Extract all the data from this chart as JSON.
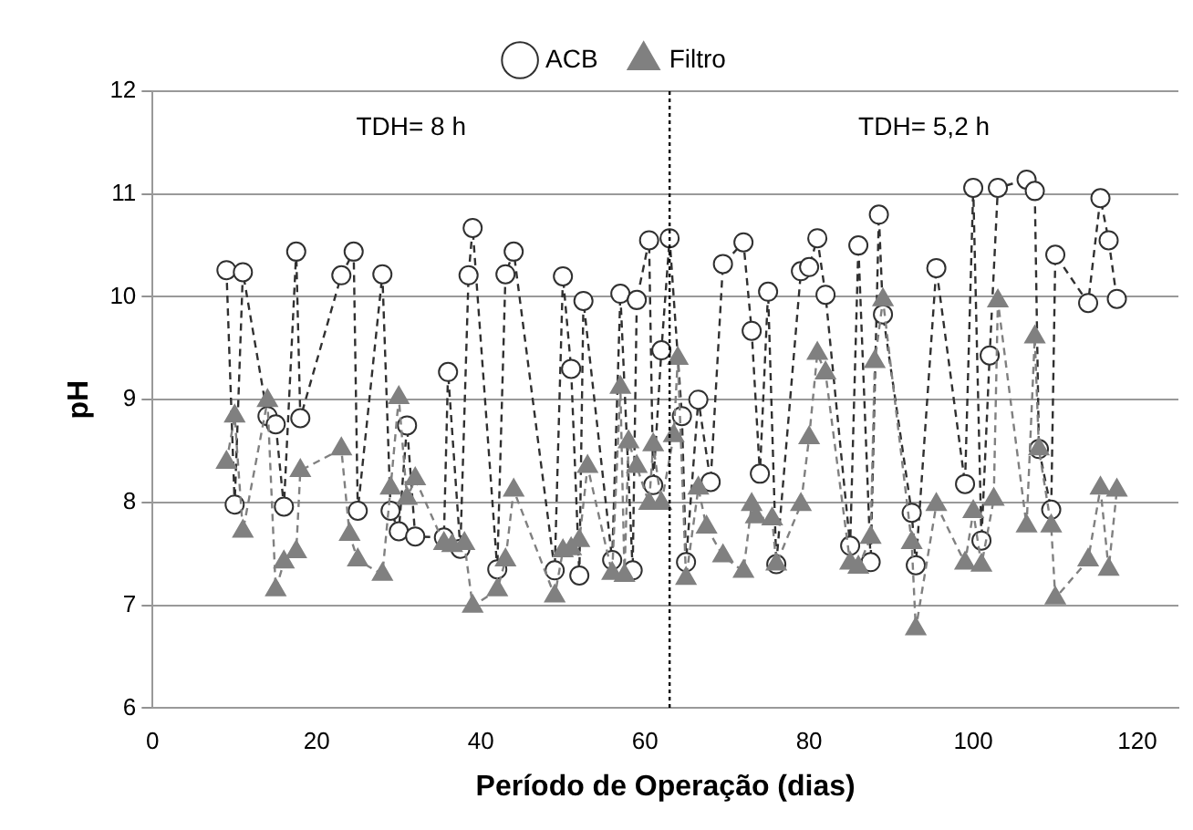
{
  "chart_data": {
    "type": "line",
    "xlabel": "Período de Operação (dias)",
    "ylabel": "pH",
    "xlim": [
      0,
      125
    ],
    "xticks": [
      0,
      20,
      40,
      60,
      80,
      100,
      120
    ],
    "ylim": [
      6,
      12
    ],
    "yticks": [
      6,
      7,
      8,
      9,
      10,
      11,
      12
    ],
    "grid": "y",
    "legend": "top",
    "line_style": "dashed",
    "ref_lines": [
      {
        "axis": "x",
        "value": 63,
        "color": "#000000",
        "line_style": "dotted"
      }
    ],
    "annotations": [
      "TDH= 8 h",
      "TDH= 5,2 h"
    ],
    "series": [
      {
        "name": "ACB",
        "color": "#303030",
        "marker": "circle",
        "x": [
          9,
          10,
          11,
          14,
          15,
          16,
          17.5,
          18,
          23,
          24.5,
          25,
          28,
          29,
          30,
          31,
          32,
          35.5,
          36,
          37.5,
          38.5,
          39,
          42,
          43,
          44,
          49,
          50,
          51,
          52,
          52.5,
          56,
          57,
          58.5,
          59,
          60.5,
          61,
          62,
          63,
          64.5,
          65,
          66.5,
          68,
          69.5,
          72,
          73,
          74,
          75,
          76,
          79,
          80,
          81,
          82,
          85,
          86,
          87.5,
          88.5,
          89,
          92.5,
          93,
          95.5,
          99,
          100,
          101,
          102,
          103,
          106.5,
          107.5,
          108,
          109.5,
          110,
          114,
          115.5,
          116.5,
          117.5
        ],
        "values": [
          10.26,
          7.98,
          10.24,
          8.84,
          8.76,
          7.96,
          10.44,
          8.82,
          10.21,
          10.44,
          7.92,
          10.22,
          7.92,
          7.72,
          8.75,
          7.67,
          7.66,
          9.27,
          7.55,
          10.21,
          10.67,
          7.35,
          10.22,
          10.44,
          7.34,
          10.2,
          9.3,
          7.29,
          9.96,
          7.44,
          10.03,
          7.34,
          9.97,
          10.55,
          8.17,
          9.48,
          10.57,
          8.84,
          7.42,
          9.0,
          8.2,
          10.32,
          10.53,
          9.67,
          8.28,
          10.05,
          7.4,
          10.25,
          10.29,
          10.57,
          10.02,
          7.58,
          10.5,
          7.42,
          10.8,
          9.83,
          7.9,
          7.39,
          10.28,
          8.18,
          11.06,
          7.63,
          9.43,
          11.06,
          11.14,
          11.03,
          8.52,
          7.93,
          10.41,
          9.94,
          10.96,
          10.55,
          9.98
        ]
      },
      {
        "name": "Filtro",
        "color": "#808080",
        "marker": "triangle",
        "x": [
          9,
          10,
          11,
          14,
          15,
          16,
          17.5,
          18,
          23,
          24,
          25,
          28,
          29,
          30,
          31,
          32,
          35.5,
          36.5,
          38,
          39,
          42,
          43,
          44,
          49,
          50,
          51,
          52,
          53,
          56,
          57,
          57.5,
          58,
          59,
          60.5,
          61,
          62,
          63.5,
          64,
          65,
          66.5,
          67.5,
          69.5,
          72,
          73,
          73.5,
          75.5,
          76,
          79,
          80,
          81,
          82,
          85,
          86,
          87.5,
          88,
          89,
          92.5,
          93,
          95.5,
          99,
          100,
          101,
          102.5,
          103,
          106.5,
          107.5,
          108,
          109.5,
          110,
          114,
          115.5,
          116.5,
          117.5
        ],
        "values": [
          8.39,
          8.84,
          7.72,
          8.99,
          7.15,
          7.42,
          7.52,
          8.31,
          8.52,
          7.69,
          7.44,
          7.3,
          8.14,
          9.02,
          8.04,
          8.23,
          7.6,
          7.58,
          7.6,
          6.99,
          7.15,
          7.44,
          8.12,
          7.09,
          7.53,
          7.55,
          7.63,
          8.35,
          7.31,
          9.12,
          7.29,
          8.59,
          8.35,
          7.99,
          8.56,
          7.99,
          8.65,
          9.4,
          7.26,
          8.14,
          7.76,
          7.48,
          7.33,
          7.98,
          7.86,
          7.84,
          7.4,
          7.98,
          8.63,
          9.45,
          9.26,
          7.41,
          7.37,
          7.66,
          9.37,
          9.97,
          7.61,
          6.77,
          7.98,
          7.41,
          7.91,
          7.39,
          8.03,
          9.96,
          7.77,
          9.61,
          8.52,
          7.77,
          7.07,
          7.44,
          8.14,
          7.35,
          8.12
        ]
      }
    ]
  }
}
